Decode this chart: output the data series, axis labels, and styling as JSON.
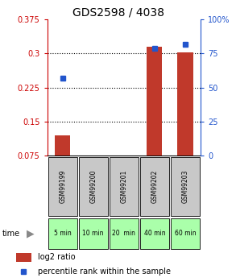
{
  "title": "GDS2598 / 4038",
  "samples": [
    "GSM99199",
    "GSM99200",
    "GSM99201",
    "GSM99202",
    "GSM99203"
  ],
  "time_labels": [
    "5 min",
    "10 min",
    "20  min",
    "40 min",
    "60 min"
  ],
  "log2_ratio": [
    0.12,
    0.075,
    0.075,
    0.315,
    0.302
  ],
  "percentile_rank": [
    57.0,
    0.0,
    0.0,
    79.0,
    82.0
  ],
  "ylim_left": [
    0.075,
    0.375
  ],
  "ylim_right": [
    0,
    100
  ],
  "yticks_left": [
    0.075,
    0.15,
    0.225,
    0.3,
    0.375
  ],
  "yticks_right": [
    0,
    25,
    50,
    75,
    100
  ],
  "ytick_labels_left": [
    "0.075",
    "0.15",
    "0.225",
    "0.3",
    "0.375"
  ],
  "ytick_labels_right": [
    "0",
    "25",
    "50",
    "75",
    "100%"
  ],
  "hlines": [
    0.15,
    0.225,
    0.3
  ],
  "bar_color": "#c0392b",
  "dot_color": "#2255cc",
  "bar_width": 0.5,
  "background_color": "#ffffff",
  "plot_bg": "#ffffff",
  "gray_box_color": "#c8c8c8",
  "green_box_color": "#aaffaa",
  "title_fontsize": 10,
  "axis_fontsize": 7,
  "legend_fontsize": 7
}
